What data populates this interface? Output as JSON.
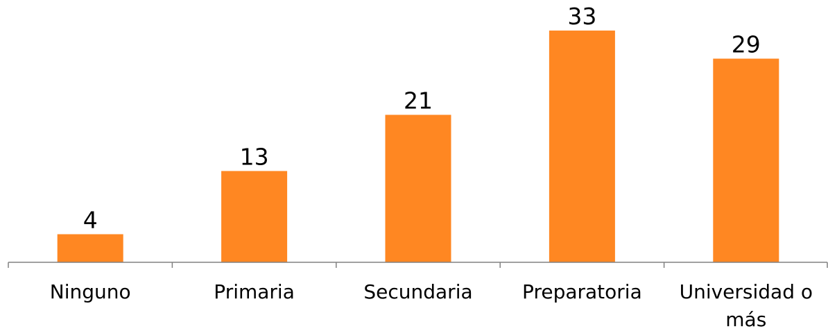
{
  "chart_data": {
    "type": "bar",
    "categories": [
      "Ninguno",
      "Primaria",
      "Secundaria",
      "Preparatoria",
      "Universidad o más"
    ],
    "category_lines": [
      [
        "Ninguno"
      ],
      [
        "Primaria"
      ],
      [
        "Secundaria"
      ],
      [
        "Preparatoria"
      ],
      [
        "Universidad o",
        "más"
      ]
    ],
    "values": [
      4,
      13,
      21,
      33,
      29
    ],
    "data_labels": [
      "4",
      "13",
      "21",
      "33",
      "29"
    ],
    "bar_color": "#FF8722",
    "axis_color": "#808080",
    "title": "",
    "xlabel": "",
    "ylabel": "",
    "ylim": [
      0,
      40
    ],
    "grid": false,
    "legend": "none"
  }
}
